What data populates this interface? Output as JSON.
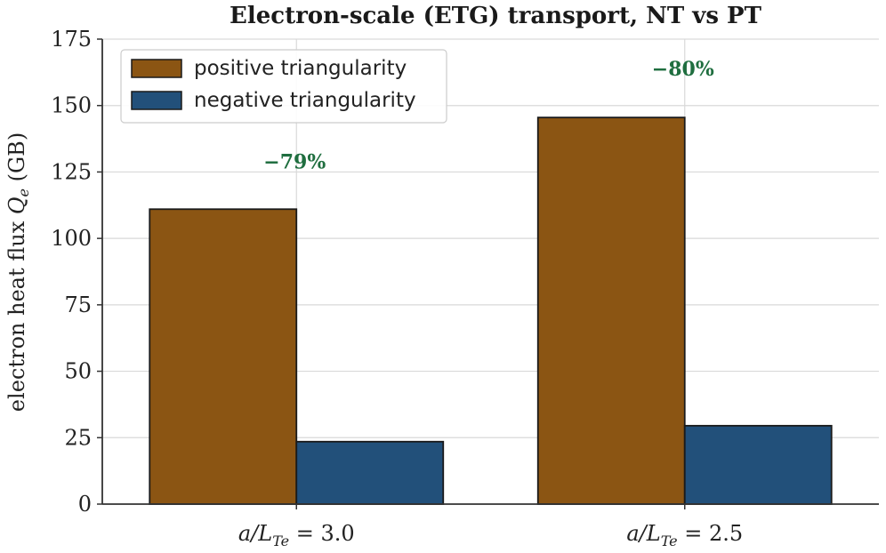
{
  "chart_data": {
    "type": "bar",
    "title": "Electron-scale (ETG) transport, NT vs PT",
    "ylabel": "electron heat flux Qe (GB)",
    "ylabel_parts": {
      "pre": "electron heat flux ",
      "sym": "Q",
      "sub": "e",
      "post": " (GB)"
    },
    "categories": [
      {
        "label": "a/LTe = 3.0",
        "pre": "a/L",
        "sub": "Te",
        "post": " = 3.0"
      },
      {
        "label": "a/LTe = 2.5",
        "pre": "a/L",
        "sub": "Te",
        "post": " = 2.5"
      }
    ],
    "series": [
      {
        "name": "positive triangularity",
        "color": "#8b5513",
        "values": [
          111,
          145.5
        ]
      },
      {
        "name": "negative triangularity",
        "color": "#22507a",
        "values": [
          23.5,
          29.5
        ]
      }
    ],
    "annotations": [
      {
        "text": "−79%",
        "category": 0,
        "y": 129,
        "color": "#1f6e3f"
      },
      {
        "text": "−80%",
        "category": 1,
        "y": 164,
        "color": "#1f6e3f"
      }
    ],
    "ylim": [
      0,
      175
    ],
    "yticks": [
      0,
      25,
      50,
      75,
      100,
      125,
      150,
      175
    ],
    "grid": true,
    "legend": "top-left"
  }
}
